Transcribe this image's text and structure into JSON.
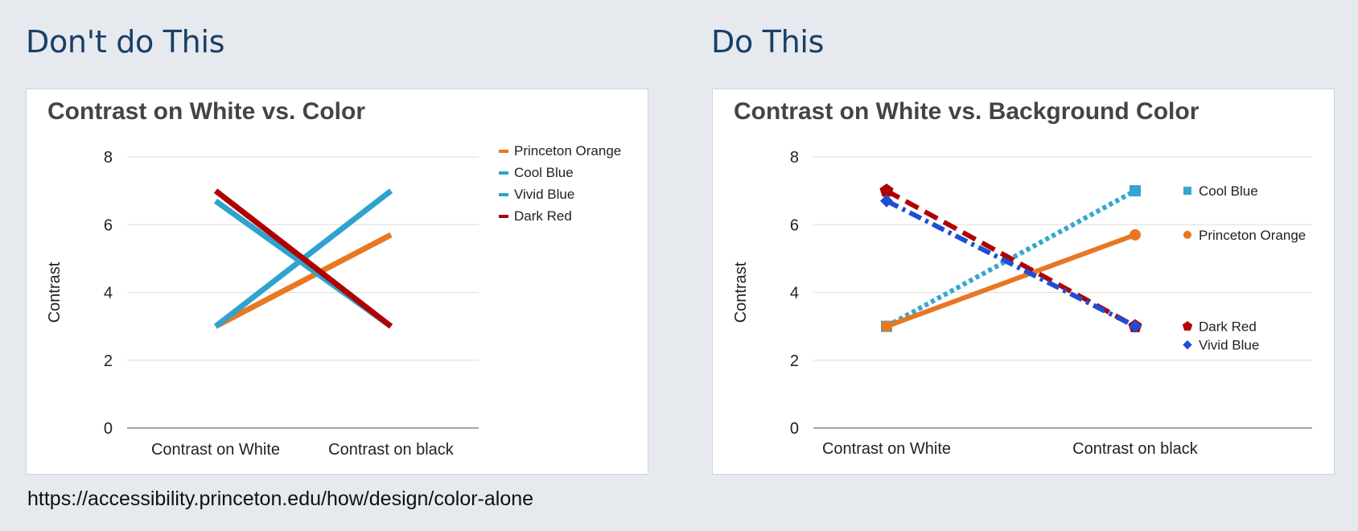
{
  "page": {
    "heading_left": "Don't do This",
    "heading_right": "Do This",
    "source_url": "https://accessibility.princeton.edu/how/design/color-alone"
  },
  "chart_data": [
    {
      "type": "line",
      "title": "Contrast on White vs. Color",
      "xlabel": "",
      "ylabel": "Contrast",
      "categories": [
        "Contrast on White",
        "Contrast on black"
      ],
      "ylim": [
        0,
        8
      ],
      "yticks": [
        0,
        2,
        4,
        6,
        8
      ],
      "grid": true,
      "legend_placement": "right",
      "markers": false,
      "series": [
        {
          "name": "Princeton Orange",
          "values": [
            3.0,
            5.7
          ],
          "color": "#e87722",
          "dash": "solid",
          "marker": "none"
        },
        {
          "name": "Cool Blue",
          "values": [
            3.0,
            7.0
          ],
          "color": "#2ea3cf",
          "dash": "solid",
          "marker": "none"
        },
        {
          "name": "Vivid Blue",
          "values": [
            6.7,
            3.0
          ],
          "color": "#2ea3cf",
          "dash": "solid",
          "marker": "none"
        },
        {
          "name": "Dark Red",
          "values": [
            7.0,
            3.0
          ],
          "color": "#b00000",
          "dash": "solid",
          "marker": "none"
        }
      ]
    },
    {
      "type": "line",
      "title": "Contrast on White vs. Background Color",
      "xlabel": "",
      "ylabel": "Contrast",
      "categories": [
        "Contrast on White",
        "Contrast on black"
      ],
      "ylim": [
        0,
        8
      ],
      "yticks": [
        0,
        2,
        4,
        6,
        8
      ],
      "grid": true,
      "legend_placement": "right, beside line ends",
      "markers": true,
      "series": [
        {
          "name": "Cool Blue",
          "values": [
            3.0,
            7.0
          ],
          "color": "#35a6d1",
          "dash": "dotted",
          "marker": "square"
        },
        {
          "name": "Princeton Orange",
          "values": [
            3.0,
            5.7
          ],
          "color": "#e87722",
          "dash": "solid",
          "marker": "circle"
        },
        {
          "name": "Dark Red",
          "values": [
            7.0,
            3.0
          ],
          "color": "#b00000",
          "dash": "dashed",
          "marker": "pentagon"
        },
        {
          "name": "Vivid Blue",
          "values": [
            6.7,
            3.0
          ],
          "color": "#1d4fd6",
          "dash": "dashdot",
          "marker": "diamond"
        }
      ]
    }
  ]
}
